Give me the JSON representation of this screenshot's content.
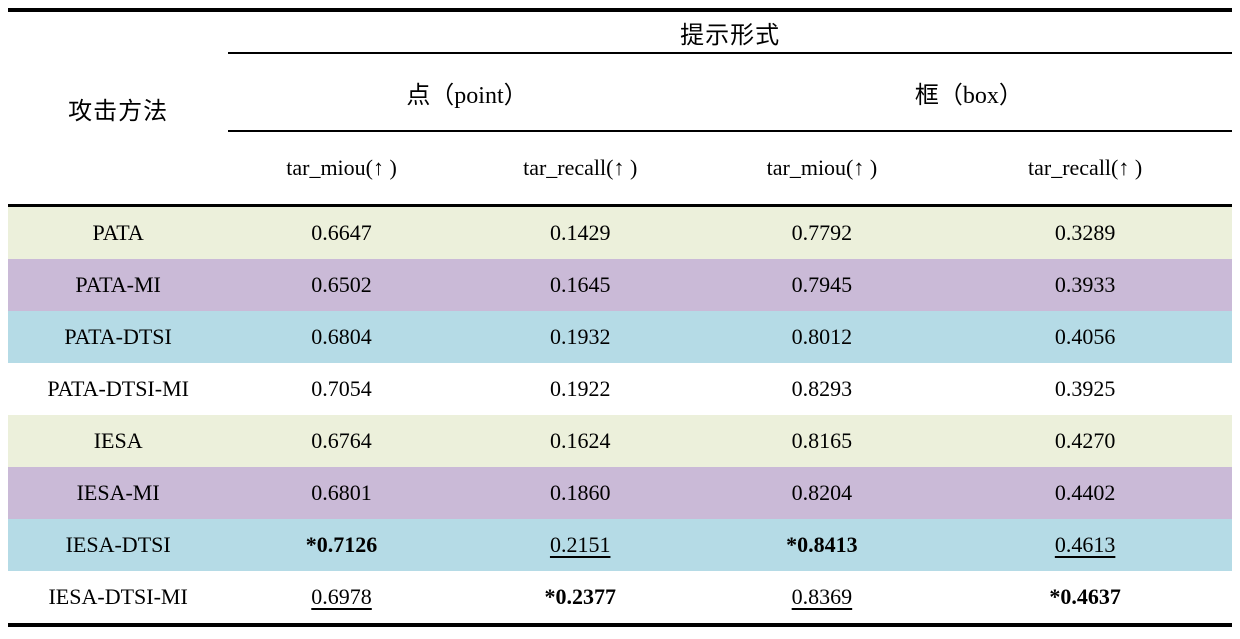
{
  "table": {
    "header": {
      "attack_method_label": "攻击方法",
      "prompt_form_label": "提示形式",
      "groups": [
        {
          "label": "点（point）"
        },
        {
          "label": "框（box）"
        }
      ],
      "metrics": [
        {
          "label": "tar_miou(↑ )"
        },
        {
          "label": "tar_recall(↑ )"
        },
        {
          "label": "tar_miou(↑ )"
        },
        {
          "label": "tar_recall(↑ )"
        }
      ]
    },
    "colors": {
      "green": "#ECF0DB",
      "purple": "#CABAD7",
      "blue": "#B5DBE6",
      "white": "#FFFFFF"
    },
    "rows": [
      {
        "method": "PATA",
        "bg": "green",
        "values": [
          {
            "text": "0.6647"
          },
          {
            "text": "0.1429"
          },
          {
            "text": "0.7792"
          },
          {
            "text": "0.3289"
          }
        ]
      },
      {
        "method": "PATA-MI",
        "bg": "purple",
        "values": [
          {
            "text": "0.6502"
          },
          {
            "text": "0.1645"
          },
          {
            "text": "0.7945"
          },
          {
            "text": "0.3933"
          }
        ]
      },
      {
        "method": "PATA-DTSI",
        "bg": "blue",
        "values": [
          {
            "text": "0.6804"
          },
          {
            "text": "0.1932"
          },
          {
            "text": "0.8012"
          },
          {
            "text": "0.4056"
          }
        ]
      },
      {
        "method": "PATA-DTSI-MI",
        "bg": "white",
        "values": [
          {
            "text": "0.7054"
          },
          {
            "text": "0.1922"
          },
          {
            "text": "0.8293"
          },
          {
            "text": "0.3925"
          }
        ]
      },
      {
        "method": "IESA",
        "bg": "green",
        "values": [
          {
            "text": "0.6764"
          },
          {
            "text": "0.1624"
          },
          {
            "text": "0.8165"
          },
          {
            "text": "0.4270"
          }
        ]
      },
      {
        "method": "IESA-MI",
        "bg": "purple",
        "values": [
          {
            "text": "0.6801"
          },
          {
            "text": "0.1860"
          },
          {
            "text": "0.8204"
          },
          {
            "text": "0.4402"
          }
        ]
      },
      {
        "method": "IESA-DTSI",
        "bg": "blue",
        "values": [
          {
            "text": "*0.7126",
            "bold": true
          },
          {
            "text": "0.2151",
            "underline": true
          },
          {
            "text": "*0.8413",
            "bold": true
          },
          {
            "text": "0.4613",
            "underline": true
          }
        ]
      },
      {
        "method": "IESA-DTSI-MI",
        "bg": "white",
        "values": [
          {
            "text": "0.6978",
            "underline": true
          },
          {
            "text": "*0.2377",
            "bold": true
          },
          {
            "text": "0.8369",
            "underline": true
          },
          {
            "text": "*0.4637",
            "bold": true
          }
        ]
      }
    ]
  }
}
